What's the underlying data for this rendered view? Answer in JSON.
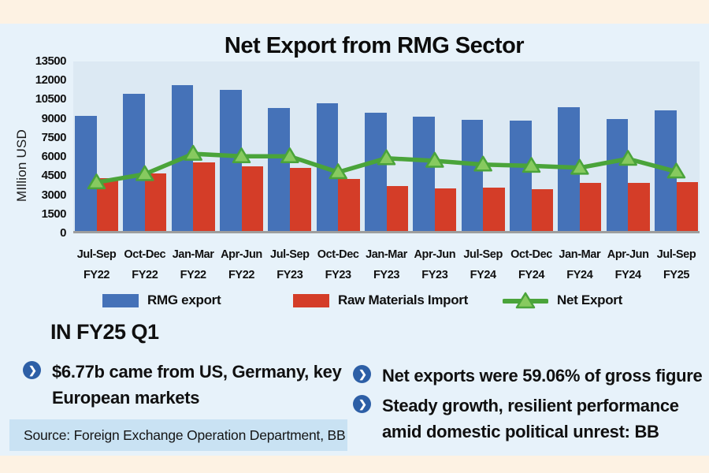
{
  "title": "Net Export from RMG Sector",
  "chart": {
    "y_axis_title": "MIllion USD",
    "y_ticks": [
      13500,
      12000,
      10500,
      9000,
      7500,
      6000,
      4500,
      3000,
      1500,
      0
    ]
  },
  "chart_data": {
    "type": "bar",
    "title": "Net Export from RMG Sector",
    "ylabel": "MIllion USD",
    "xlabel": "",
    "ylim": [
      0,
      13500
    ],
    "y_tick_step": 1500,
    "grid": false,
    "legend_position": "bottom",
    "categories": [
      "Jul-Sep FY22",
      "Oct-Dec FY22",
      "Jan-Mar FY22",
      "Apr-Jun FY22",
      "Jul-Sep FY23",
      "Oct-Dec FY23",
      "Jan-Mar FY23",
      "Apr-Jun FY23",
      "Jul-Sep FY24",
      "Oct-Dec FY24",
      "Jan-Mar FY24",
      "Apr-Jun FY24",
      "Jul-Sep FY25"
    ],
    "categories_lines": [
      [
        "Jul-Sep",
        "FY22"
      ],
      [
        "Oct-Dec",
        "FY22"
      ],
      [
        "Jan-Mar",
        "FY22"
      ],
      [
        "Apr-Jun",
        "FY22"
      ],
      [
        "Jul-Sep",
        "FY23"
      ],
      [
        "Oct-Dec",
        "FY23"
      ],
      [
        "Jan-Mar",
        "FY23"
      ],
      [
        "Apr-Jun",
        "FY23"
      ],
      [
        "Jul-Sep",
        "FY24"
      ],
      [
        "Oct-Dec",
        "FY24"
      ],
      [
        "Jan-Mar",
        "FY24"
      ],
      [
        "Apr-Jun",
        "FY24"
      ],
      [
        "Jul-Sep",
        "FY25"
      ]
    ],
    "series": [
      {
        "name": "RMG export",
        "type": "bar",
        "color": "#4572b8",
        "values": [
          9050,
          10800,
          11450,
          11100,
          9650,
          10050,
          9300,
          9000,
          8750,
          8700,
          9700,
          8800,
          9500
        ]
      },
      {
        "name": "Raw Materials Import",
        "type": "bar",
        "color": "#d43d28",
        "values": [
          4150,
          4550,
          5400,
          5100,
          4950,
          4100,
          3500,
          3350,
          3400,
          3300,
          3800,
          3750,
          3850
        ]
      },
      {
        "name": "Net Export",
        "type": "line",
        "color": "#4aa43a",
        "marker": "triangle-up",
        "marker_fill": "#87ca5f",
        "values": [
          4000,
          4650,
          6250,
          6050,
          6050,
          4800,
          5900,
          5700,
          5400,
          5300,
          5150,
          5850,
          4850
        ]
      }
    ]
  },
  "legend": {
    "items": [
      {
        "label": "RMG export",
        "swatch": "bar",
        "color": "#4572b8"
      },
      {
        "label": "Raw Materials Import",
        "swatch": "bar",
        "color": "#d43d28"
      },
      {
        "label": "Net Export",
        "swatch": "line-triangle",
        "color": "#4aa43a"
      }
    ]
  },
  "highlights": {
    "heading": "IN FY25 Q1",
    "bullet_icon": "chevron-right-circle",
    "bullet_glyph": "❯",
    "left_bullets": [
      "$6.77b came from US, Germany, key European markets"
    ],
    "right_bullets": [
      "Net exports were 59.06% of gross figure",
      "Steady growth, resilient performance amid domestic political unrest: BB"
    ]
  },
  "source": "Source: Foreign Exchange Operation Department, BB",
  "colors": {
    "outer_background": "#fdf2e3",
    "panel_background": "#e7f2fa",
    "plot_background": "#dce9f3",
    "axis_line": "#9e9e9e",
    "bar_blue": "#4572b8",
    "bar_red": "#d43d28",
    "line_green": "#4aa43a",
    "marker_green_fill": "#87ca5f",
    "source_box": "#c9e2f3",
    "bullet_circle": "#2d5fa6",
    "text": "#101010"
  }
}
